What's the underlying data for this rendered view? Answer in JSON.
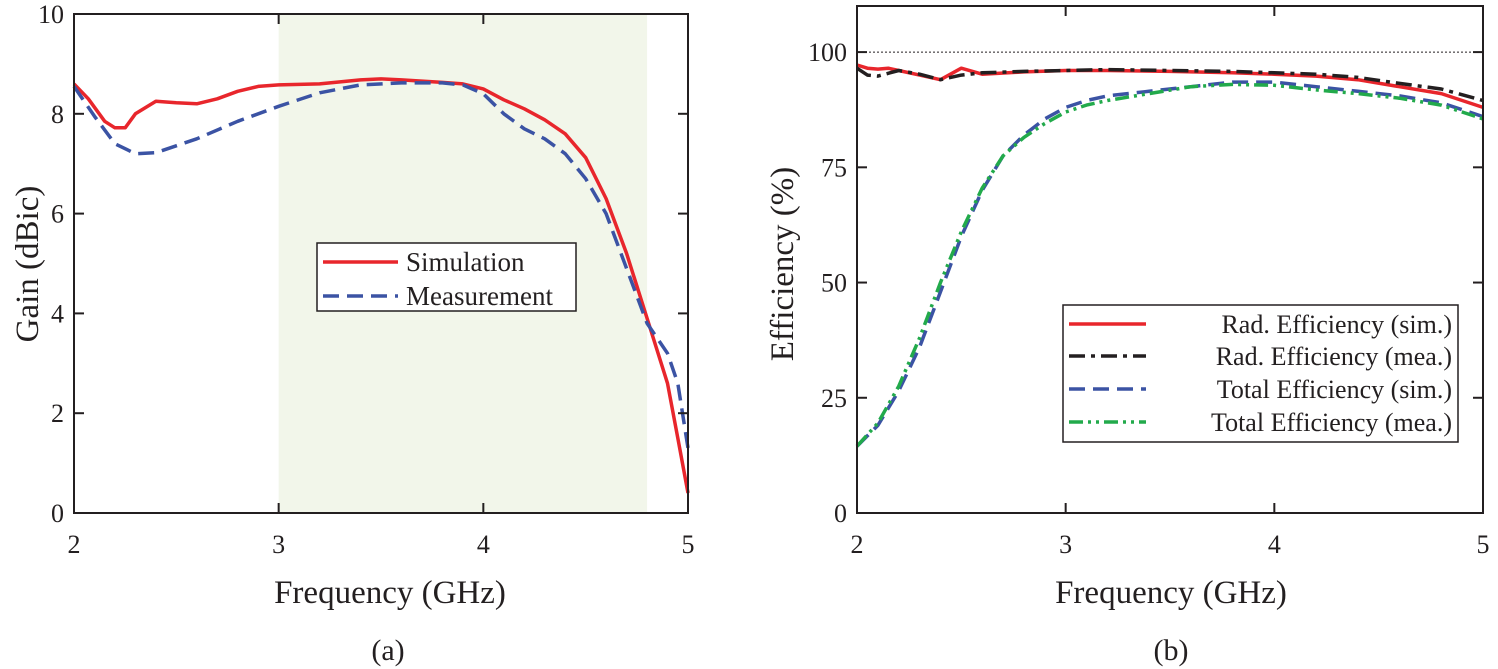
{
  "chart_data": [
    {
      "type": "line",
      "panel_label": "(a)",
      "xlabel": "Frequency (GHz)",
      "ylabel": "Gain (dBic)",
      "xlim": [
        2,
        5
      ],
      "ylim": [
        0,
        10
      ],
      "xticks": [
        "2",
        "3",
        "4",
        "5"
      ],
      "yticks": [
        "0",
        "2",
        "4",
        "6",
        "8",
        "10"
      ],
      "shaded_band": [
        3.0,
        4.8
      ],
      "shaded_color": "#f2f6ea",
      "legend_position": "center",
      "series": [
        {
          "name": "Simulation",
          "color": "#e8262c",
          "dash": "solid",
          "x": [
            2.0,
            2.07,
            2.15,
            2.2,
            2.25,
            2.3,
            2.4,
            2.5,
            2.6,
            2.7,
            2.8,
            2.9,
            3.0,
            3.2,
            3.4,
            3.5,
            3.6,
            3.8,
            3.9,
            4.0,
            4.1,
            4.2,
            4.3,
            4.4,
            4.5,
            4.6,
            4.7,
            4.8,
            4.9,
            4.95,
            5.0
          ],
          "values": [
            8.6,
            8.3,
            7.85,
            7.72,
            7.72,
            8.0,
            8.25,
            8.22,
            8.2,
            8.3,
            8.45,
            8.55,
            8.58,
            8.6,
            8.68,
            8.7,
            8.68,
            8.63,
            8.6,
            8.5,
            8.28,
            8.1,
            7.88,
            7.6,
            7.12,
            6.3,
            5.2,
            3.9,
            2.6,
            1.5,
            0.4
          ]
        },
        {
          "name": "Measurement",
          "color": "#3b53a4",
          "dash": "dashed",
          "x": [
            2.0,
            2.1,
            2.2,
            2.3,
            2.4,
            2.6,
            2.8,
            3.0,
            3.2,
            3.4,
            3.6,
            3.8,
            3.9,
            4.0,
            4.1,
            4.2,
            4.3,
            4.4,
            4.5,
            4.6,
            4.7,
            4.8,
            4.9,
            4.95,
            5.0
          ],
          "values": [
            8.55,
            7.95,
            7.4,
            7.2,
            7.22,
            7.5,
            7.85,
            8.15,
            8.42,
            8.58,
            8.62,
            8.62,
            8.58,
            8.4,
            8.0,
            7.7,
            7.5,
            7.2,
            6.7,
            6.0,
            4.9,
            3.8,
            3.2,
            2.6,
            1.3
          ]
        }
      ]
    },
    {
      "type": "line",
      "panel_label": "(b)",
      "xlabel": "Frequency (GHz)",
      "ylabel": "Efficiency (%)",
      "xlim": [
        2,
        5
      ],
      "ylim": [
        0,
        110
      ],
      "xticks": [
        "2",
        "3",
        "4",
        "5"
      ],
      "yticks": [
        "0",
        "25",
        "50",
        "75",
        "100"
      ],
      "reference_line": 100,
      "legend_position": "lower-right",
      "series": [
        {
          "name": "Rad. Efficiency (sim.)",
          "color": "#e8262c",
          "dash": "solid",
          "x": [
            2.0,
            2.05,
            2.1,
            2.15,
            2.2,
            2.3,
            2.4,
            2.5,
            2.6,
            2.8,
            3.0,
            3.2,
            3.5,
            3.8,
            4.0,
            4.2,
            4.4,
            4.6,
            4.8,
            5.0
          ],
          "values": [
            97.2,
            96.5,
            96.3,
            96.5,
            96.0,
            95.0,
            94.0,
            96.5,
            95.2,
            95.7,
            96.0,
            96.0,
            95.8,
            95.5,
            95.2,
            94.8,
            94.0,
            92.5,
            91.0,
            88.0
          ]
        },
        {
          "name": "Rad. Efficiency (mea.)",
          "color": "#231f20",
          "dash": "dashdot",
          "x": [
            2.0,
            2.05,
            2.1,
            2.2,
            2.3,
            2.4,
            2.5,
            2.6,
            2.8,
            3.0,
            3.2,
            3.5,
            3.8,
            4.0,
            4.2,
            4.4,
            4.6,
            4.8,
            5.0
          ],
          "values": [
            96.5,
            95.0,
            94.8,
            96.0,
            95.2,
            94.0,
            95.0,
            95.5,
            95.8,
            96.0,
            96.2,
            96.0,
            95.8,
            95.5,
            95.2,
            94.5,
            93.2,
            92.0,
            89.5
          ]
        },
        {
          "name": "Total Efficiency (sim.)",
          "color": "#3b53a4",
          "dash": "dashed",
          "x": [
            2.0,
            2.1,
            2.2,
            2.3,
            2.4,
            2.5,
            2.6,
            2.7,
            2.8,
            2.9,
            3.0,
            3.1,
            3.2,
            3.4,
            3.6,
            3.8,
            4.0,
            4.2,
            4.4,
            4.6,
            4.8,
            5.0
          ],
          "values": [
            14.5,
            19.0,
            26.5,
            36.0,
            48.0,
            60.0,
            70.0,
            77.5,
            82.0,
            85.5,
            88.0,
            89.5,
            90.5,
            91.5,
            92.5,
            93.5,
            93.5,
            92.5,
            91.5,
            90.5,
            89.0,
            86.0
          ]
        },
        {
          "name": "Total Efficiency (mea.)",
          "color": "#22aa4b",
          "dash": "dashdotdot",
          "x": [
            2.0,
            2.1,
            2.2,
            2.3,
            2.4,
            2.5,
            2.6,
            2.7,
            2.8,
            2.9,
            3.0,
            3.1,
            3.2,
            3.4,
            3.6,
            3.8,
            4.0,
            4.2,
            4.4,
            4.6,
            4.8,
            5.0
          ],
          "values": [
            14.5,
            19.5,
            27.5,
            38.0,
            50.0,
            61.0,
            70.5,
            77.5,
            81.5,
            84.5,
            87.0,
            88.5,
            89.5,
            91.0,
            92.5,
            93.0,
            92.8,
            91.8,
            91.0,
            90.0,
            88.5,
            85.5
          ]
        }
      ]
    }
  ]
}
